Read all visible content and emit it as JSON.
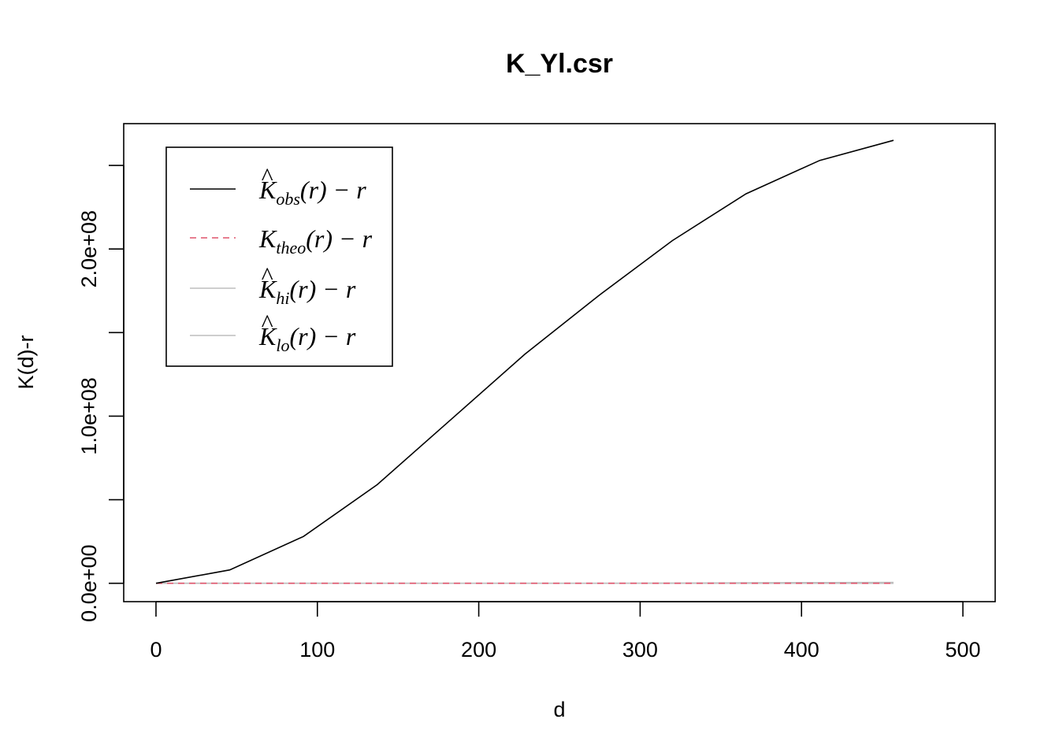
{
  "chart_data": {
    "type": "line",
    "title": "K_Yl.csr",
    "xlabel": "d",
    "ylabel": "K(d)-r",
    "xlim": [
      -20,
      520
    ],
    "ylim": [
      -11000000,
      275000000
    ],
    "x_ticks": [
      0,
      100,
      200,
      300,
      400,
      500
    ],
    "x_tick_labels": [
      "0",
      "100",
      "200",
      "300",
      "400",
      "500"
    ],
    "y_ticks": [
      0,
      50000000,
      100000000,
      150000000,
      200000000,
      250000000
    ],
    "y_tick_labels": [
      "0.0e+00",
      "",
      "1.0e+08",
      "",
      "2.0e+08",
      ""
    ],
    "grid": false,
    "legend_position": "top-left",
    "x": [
      0,
      45.7,
      91.4,
      137.1,
      182.8,
      228.5,
      274.2,
      319.9,
      365.6,
      411.3,
      457
    ],
    "series": [
      {
        "name": "obs",
        "legend_label": {
          "main": "K",
          "hat": true,
          "sub": "obs",
          "rest": "(r) − r"
        },
        "color": "#000000",
        "dash": "solid",
        "values": [
          0,
          8000000,
          28000000,
          59000000,
          98000000,
          137000000,
          172000000,
          205000000,
          233000000,
          253000000,
          265000000
        ]
      },
      {
        "name": "theo",
        "legend_label": {
          "main": "K",
          "hat": false,
          "sub": "theo",
          "rest": "(r) − r"
        },
        "color": "#DF536B",
        "dash": "dashed",
        "values": [
          0,
          0,
          0,
          0,
          0,
          0,
          0,
          0,
          0,
          0,
          0
        ]
      },
      {
        "name": "hi",
        "legend_label": {
          "main": "K",
          "hat": true,
          "sub": "hi",
          "rest": "(r) − r"
        },
        "color": "#BEBEBE",
        "dash": "solid",
        "values": [
          0,
          0,
          0,
          0,
          0,
          0,
          0,
          100000,
          300000,
          400000,
          500000
        ]
      },
      {
        "name": "lo",
        "legend_label": {
          "main": "K",
          "hat": true,
          "sub": "lo",
          "rest": "(r) − r"
        },
        "color": "#BEBEBE",
        "dash": "solid",
        "values": [
          0,
          0,
          0,
          0,
          0,
          0,
          0,
          0,
          0,
          0,
          0
        ]
      }
    ]
  }
}
